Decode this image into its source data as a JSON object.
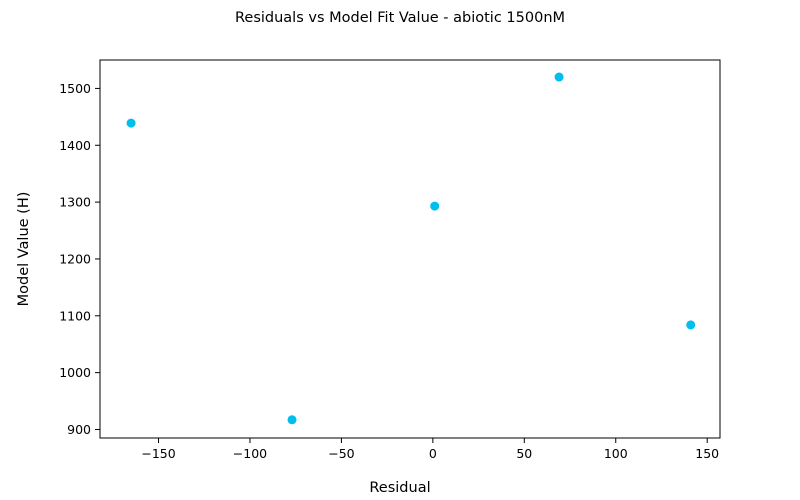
{
  "chart_data": {
    "type": "scatter",
    "title": "Residuals vs Model Fit Value  - abiotic 1500nM",
    "xlabel": "Residual",
    "ylabel": "Model Value (H)",
    "xlim": [
      -182,
      157
    ],
    "ylim": [
      885,
      1550
    ],
    "xticks": [
      -150,
      -100,
      -50,
      0,
      50,
      100,
      150
    ],
    "xtick_labels": [
      "−150",
      "−100",
      "−50",
      "0",
      "50",
      "100",
      "150"
    ],
    "yticks": [
      900,
      1000,
      1100,
      1200,
      1300,
      1400,
      1500
    ],
    "ytick_labels": [
      "900",
      "1000",
      "1100",
      "1200",
      "1300",
      "1400",
      "1500"
    ],
    "grid": false,
    "marker_color": "#00bfef",
    "series": [
      {
        "points": [
          {
            "x": -165,
            "y": 1439
          },
          {
            "x": -77,
            "y": 917
          },
          {
            "x": 1,
            "y": 1293
          },
          {
            "x": 69,
            "y": 1520
          },
          {
            "x": 141,
            "y": 1084
          }
        ]
      }
    ]
  }
}
